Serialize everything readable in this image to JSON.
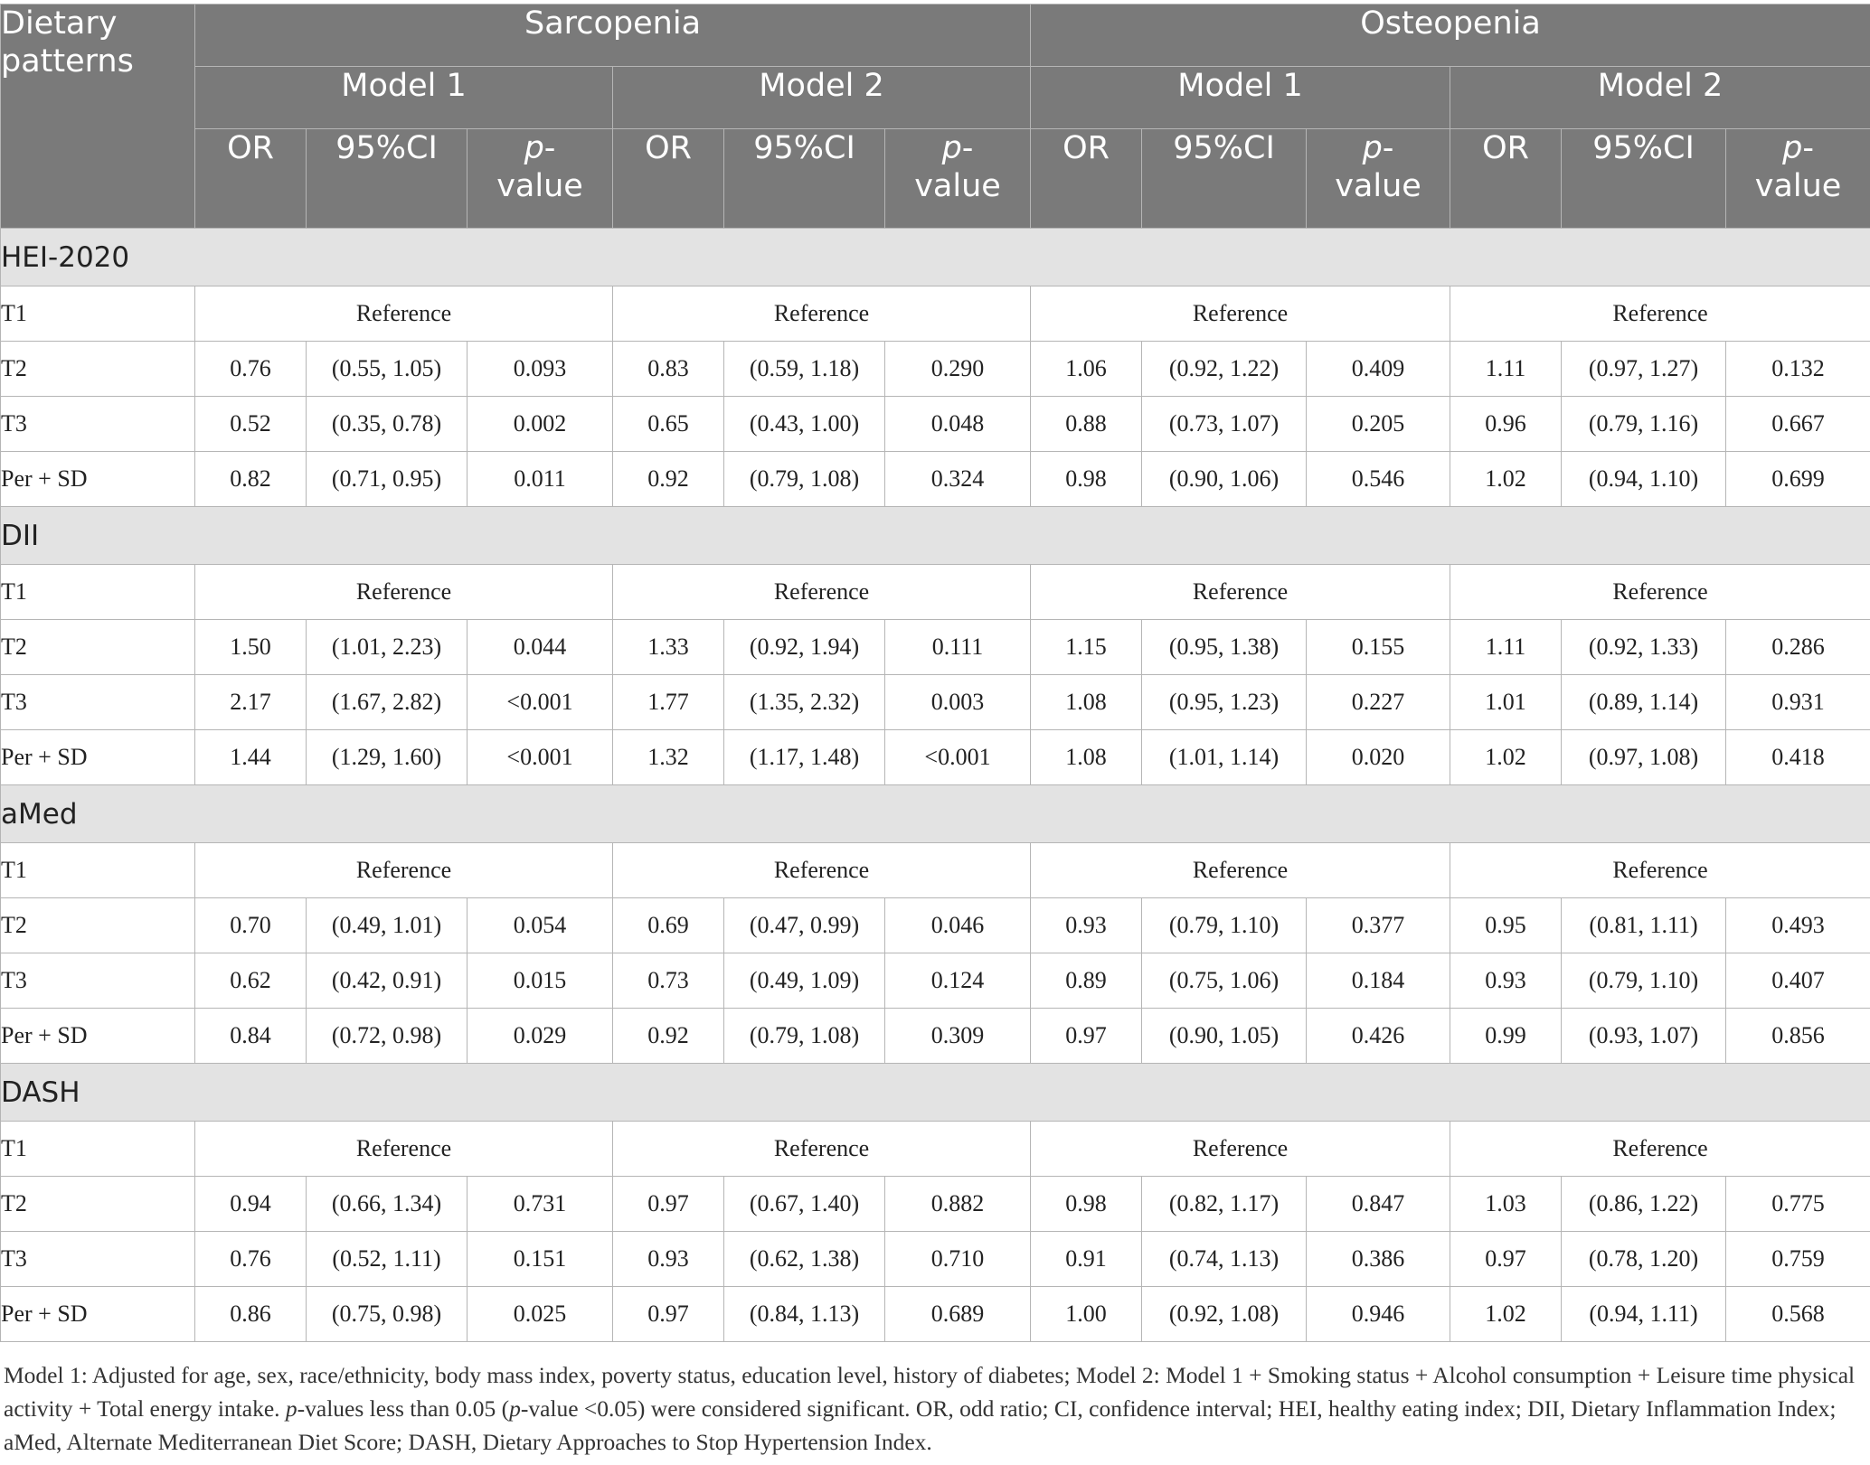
{
  "header": {
    "row_label": "Dietary patterns",
    "groups": [
      "Sarcopenia",
      "Osteopenia"
    ],
    "models": [
      "Model 1",
      "Model 2",
      "Model 1",
      "Model 2"
    ],
    "columns": [
      "OR",
      "95%CI",
      "p-value"
    ]
  },
  "sections": [
    {
      "name": "HEI-2020",
      "rows": [
        {
          "label": "T1",
          "reference": "Reference"
        },
        {
          "label": "T2",
          "values": [
            "0.76",
            "(0.55, 1.05)",
            "0.093",
            "0.83",
            "(0.59, 1.18)",
            "0.290",
            "1.06",
            "(0.92, 1.22)",
            "0.409",
            "1.11",
            "(0.97, 1.27)",
            "0.132"
          ]
        },
        {
          "label": "T3",
          "values": [
            "0.52",
            "(0.35, 0.78)",
            "0.002",
            "0.65",
            "(0.43, 1.00)",
            "0.048",
            "0.88",
            "(0.73, 1.07)",
            "0.205",
            "0.96",
            "(0.79, 1.16)",
            "0.667"
          ]
        },
        {
          "label": "Per + SD",
          "values": [
            "0.82",
            "(0.71, 0.95)",
            "0.011",
            "0.92",
            "(0.79, 1.08)",
            "0.324",
            "0.98",
            "(0.90, 1.06)",
            "0.546",
            "1.02",
            "(0.94, 1.10)",
            "0.699"
          ]
        }
      ]
    },
    {
      "name": "DII",
      "rows": [
        {
          "label": "T1",
          "reference": "Reference"
        },
        {
          "label": "T2",
          "values": [
            "1.50",
            "(1.01, 2.23)",
            "0.044",
            "1.33",
            "(0.92, 1.94)",
            "0.111",
            "1.15",
            "(0.95, 1.38)",
            "0.155",
            "1.11",
            "(0.92, 1.33)",
            "0.286"
          ]
        },
        {
          "label": "T3",
          "values": [
            "2.17",
            "(1.67, 2.82)",
            "<0.001",
            "1.77",
            "(1.35, 2.32)",
            "0.003",
            "1.08",
            "(0.95, 1.23)",
            "0.227",
            "1.01",
            "(0.89, 1.14)",
            "0.931"
          ]
        },
        {
          "label": "Per + SD",
          "values": [
            "1.44",
            "(1.29, 1.60)",
            "<0.001",
            "1.32",
            "(1.17, 1.48)",
            "<0.001",
            "1.08",
            "(1.01, 1.14)",
            "0.020",
            "1.02",
            "(0.97, 1.08)",
            "0.418"
          ]
        }
      ]
    },
    {
      "name": "aMed",
      "rows": [
        {
          "label": "T1",
          "reference": "Reference"
        },
        {
          "label": "T2",
          "values": [
            "0.70",
            "(0.49, 1.01)",
            "0.054",
            "0.69",
            "(0.47, 0.99)",
            "0.046",
            "0.93",
            "(0.79, 1.10)",
            "0.377",
            "0.95",
            "(0.81, 1.11)",
            "0.493"
          ]
        },
        {
          "label": "T3",
          "values": [
            "0.62",
            "(0.42, 0.91)",
            "0.015",
            "0.73",
            "(0.49, 1.09)",
            "0.124",
            "0.89",
            "(0.75, 1.06)",
            "0.184",
            "0.93",
            "(0.79, 1.10)",
            "0.407"
          ]
        },
        {
          "label": "Per + SD",
          "values": [
            "0.84",
            "(0.72, 0.98)",
            "0.029",
            "0.92",
            "(0.79, 1.08)",
            "0.309",
            "0.97",
            "(0.90, 1.05)",
            "0.426",
            "0.99",
            "(0.93, 1.07)",
            "0.856"
          ]
        }
      ]
    },
    {
      "name": "DASH",
      "rows": [
        {
          "label": "T1",
          "reference": "Reference"
        },
        {
          "label": "T2",
          "values": [
            "0.94",
            "(0.66, 1.34)",
            "0.731",
            "0.97",
            "(0.67, 1.40)",
            "0.882",
            "0.98",
            "(0.82, 1.17)",
            "0.847",
            "1.03",
            "(0.86, 1.22)",
            "0.775"
          ]
        },
        {
          "label": "T3",
          "values": [
            "0.76",
            "(0.52, 1.11)",
            "0.151",
            "0.93",
            "(0.62, 1.38)",
            "0.710",
            "0.91",
            "(0.74, 1.13)",
            "0.386",
            "0.97",
            "(0.78, 1.20)",
            "0.759"
          ]
        },
        {
          "label": "Per + SD",
          "values": [
            "0.86",
            "(0.75, 0.98)",
            "0.025",
            "0.97",
            "(0.84, 1.13)",
            "0.689",
            "1.00",
            "(0.92, 1.08)",
            "0.946",
            "1.02",
            "(0.94, 1.11)",
            "0.568"
          ]
        }
      ]
    }
  ],
  "footnote": "Model 1: Adjusted for age, sex, race/ethnicity, body mass index, poverty status, education level, history of diabetes; Model 2: Model 1 + Smoking status + Alcohol consumption + Leisure time physical activity + Total energy intake. p-values less than 0.05 (p-value <0.05) were considered significant. OR, odd ratio; CI, confidence interval; HEI, healthy eating index; DII, Dietary Inflammation Index; aMed, Alternate Mediterranean Diet Score; DASH, Dietary Approaches to Stop Hypertension Index."
}
